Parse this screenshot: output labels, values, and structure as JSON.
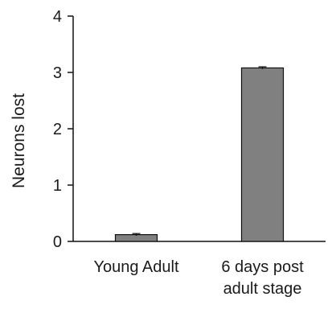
{
  "chart_data": {
    "type": "bar",
    "categories": [
      "Young Adult",
      "6 days post adult stage"
    ],
    "category_lines": [
      [
        "Young Adult"
      ],
      [
        "6 days post",
        "adult stage"
      ]
    ],
    "values": [
      0.12,
      3.08
    ],
    "error": [
      0.02,
      0.02
    ],
    "title": "",
    "xlabel": "",
    "ylabel": "Neurons lost",
    "ylim": [
      0,
      4
    ],
    "yticks": [
      0,
      1,
      2,
      3,
      4
    ],
    "grid": false,
    "legend": "none",
    "colors": {
      "bar_fill": "#808080",
      "bar_stroke": "#111111",
      "axis": "#111111"
    }
  }
}
